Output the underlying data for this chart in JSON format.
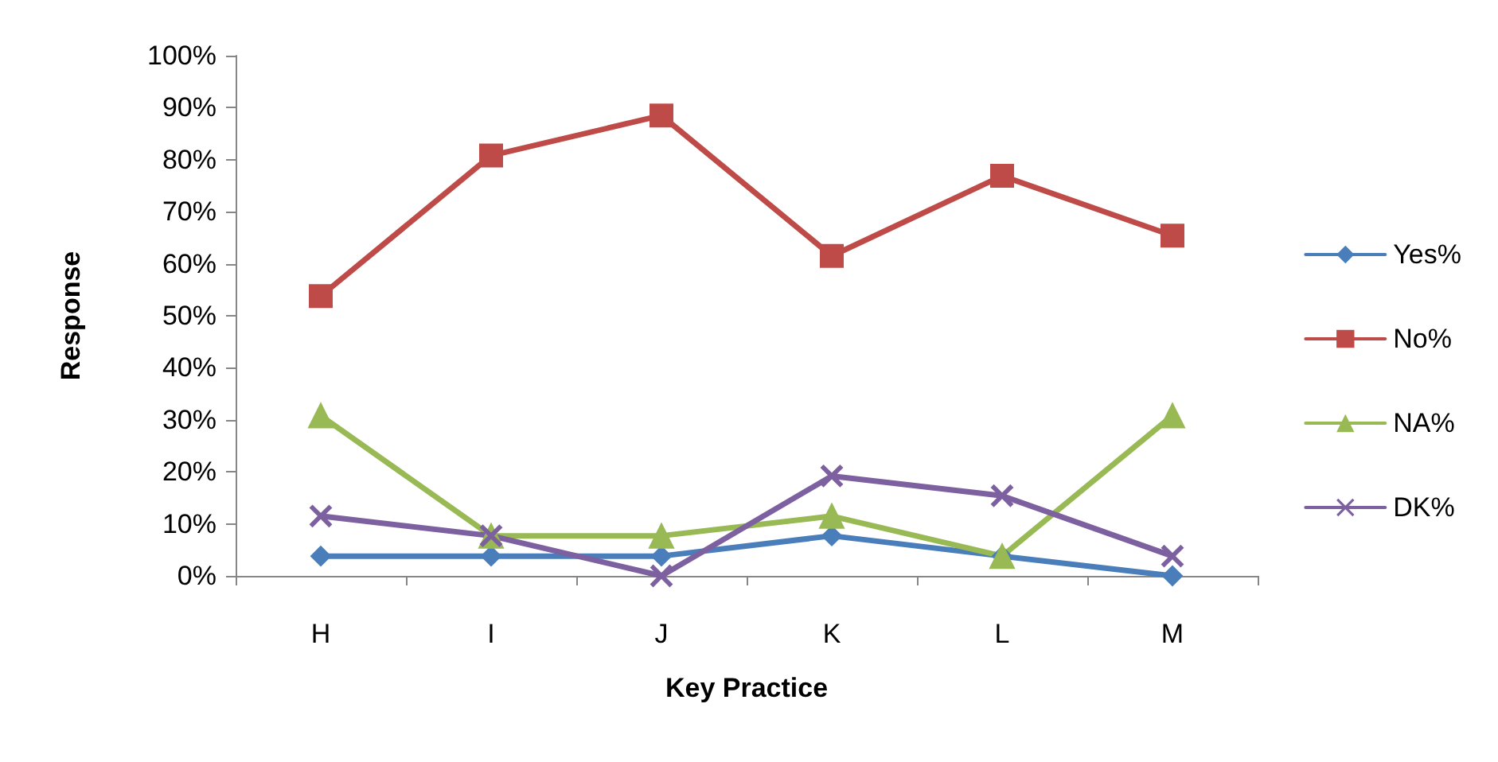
{
  "chart_data": {
    "type": "line",
    "xlabel": "Key Practice",
    "ylabel": "Response",
    "categories": [
      "H",
      "I",
      "J",
      "K",
      "L",
      "M"
    ],
    "series": [
      {
        "name": "Yes%",
        "color": "#4a7ebb",
        "marker": "diamond",
        "values": [
          3.8,
          3.8,
          3.8,
          7.7,
          3.8,
          0
        ]
      },
      {
        "name": "No%",
        "color": "#be4b48",
        "marker": "square",
        "values": [
          53.8,
          80.8,
          88.5,
          61.5,
          76.9,
          65.4
        ]
      },
      {
        "name": "NA%",
        "color": "#98b954",
        "marker": "triangle",
        "values": [
          30.8,
          7.7,
          7.7,
          11.5,
          3.8,
          30.8
        ]
      },
      {
        "name": "DK%",
        "color": "#7d60a0",
        "marker": "cross",
        "values": [
          11.5,
          7.7,
          0,
          19.2,
          15.4,
          3.8
        ]
      }
    ],
    "ylim": [
      0,
      100
    ],
    "yticks": [
      {
        "value": 0,
        "label": "0%"
      },
      {
        "value": 10,
        "label": "10%"
      },
      {
        "value": 20,
        "label": "20%"
      },
      {
        "value": 30,
        "label": "30%"
      },
      {
        "value": 40,
        "label": "40%"
      },
      {
        "value": 50,
        "label": "50%"
      },
      {
        "value": 60,
        "label": "60%"
      },
      {
        "value": 70,
        "label": "70%"
      },
      {
        "value": 80,
        "label": "80%"
      },
      {
        "value": 90,
        "label": "90%"
      },
      {
        "value": 100,
        "label": "100%"
      }
    ],
    "grid": false,
    "legend": "right",
    "line_style": "solid"
  }
}
